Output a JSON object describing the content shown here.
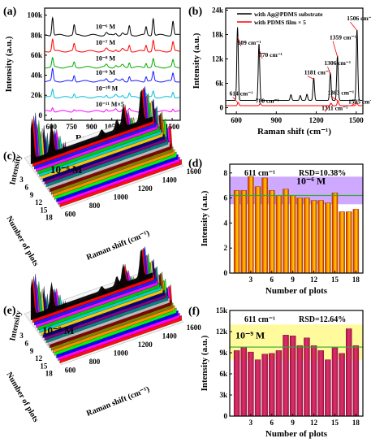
{
  "chart_data": [
    {
      "panel": "(a)",
      "type": "line",
      "xlabel": "Raman shift (cm⁻¹)",
      "ylabel": "Intensity (a.u.)",
      "xlim": [
        550,
        1560
      ],
      "ylim": [
        -5000,
        107000
      ],
      "xticks": [
        600,
        750,
        900,
        1050,
        1200,
        1350,
        1500
      ],
      "yticks": [
        0,
        20000,
        40000,
        60000,
        80000,
        100000
      ],
      "ytick_labels": [
        "0",
        "20k",
        "40k",
        "60k",
        "80k",
        "100k"
      ],
      "peaks": [
        609,
        770,
        1181,
        1306,
        1359,
        1506
      ],
      "series": [
        {
          "name": "10⁻⁶ M",
          "color": "#000000",
          "baseline": 80000,
          "peak_heights": [
            18000,
            10000,
            9000,
            8000,
            17000,
            14000
          ]
        },
        {
          "name": "10⁻⁷ M",
          "color": "#ff0000",
          "baseline": 64000,
          "peak_heights": [
            12000,
            7000,
            6000,
            6000,
            11000,
            9000
          ]
        },
        {
          "name": "10⁻⁸ M",
          "color": "#00aa00",
          "baseline": 48000,
          "peak_heights": [
            9000,
            5000,
            5000,
            4500,
            8000,
            7000
          ]
        },
        {
          "name": "10⁻⁹ M",
          "color": "#1a1aff",
          "baseline": 34000,
          "peak_heights": [
            12000,
            6000,
            5000,
            5000,
            9000,
            8000
          ]
        },
        {
          "name": "10⁻¹⁰ M",
          "color": "#00bfd8",
          "baseline": 18000,
          "peak_heights": [
            8000,
            4000,
            4000,
            3500,
            6000,
            5500
          ]
        },
        {
          "name": "10⁻¹¹ M×5",
          "color": "#ff00ff",
          "baseline": 4000,
          "peak_heights": [
            4000,
            2000,
            2000,
            2000,
            3000,
            3000
          ]
        }
      ]
    },
    {
      "panel": "(b)",
      "type": "line",
      "xlabel": "Raman shift (cm⁻¹)",
      "ylabel": "Intensity (a.u.)",
      "xlim": [
        520,
        1550
      ],
      "ylim": [
        -1500,
        24500
      ],
      "xticks": [
        600,
        900,
        1200,
        1500
      ],
      "yticks": [
        0,
        6000,
        12000,
        18000,
        24000
      ],
      "ytick_labels": [
        "0",
        "6k",
        "12k",
        "18k",
        "24k"
      ],
      "series": [
        {
          "name": "with Ag@PDMS substrate",
          "color": "#000000",
          "baseline": 1800,
          "peaks": [
            [
              609,
              18000
            ],
            [
              770,
              14000
            ],
            [
              1181,
              5500
            ],
            [
              1306,
              6800
            ],
            [
              1359,
              11000
            ],
            [
              1506,
              17500
            ],
            [
              1010,
              1400
            ],
            [
              1080,
              1200
            ],
            [
              1130,
              1500
            ]
          ]
        },
        {
          "name": "with PDMS film × 5",
          "color": "#ff0000",
          "baseline": 500,
          "peaks": [
            [
              614,
              800
            ],
            [
              780,
              500
            ],
            [
              1311,
              600
            ],
            [
              1363,
              1200
            ],
            [
              1505,
              700
            ]
          ]
        }
      ],
      "annotations": [
        {
          "text": "609 cm⁻¹"
        },
        {
          "text": "770 cm⁻¹"
        },
        {
          "text": "1181 cm⁻¹"
        },
        {
          "text": "1306 cm⁻¹"
        },
        {
          "text": "1359 cm⁻¹"
        },
        {
          "text": "1506 cm⁻¹"
        },
        {
          "text": "614 cm⁻¹"
        },
        {
          "text": "780 cm⁻¹"
        },
        {
          "text": "1311 cm⁻¹"
        },
        {
          "text": "1363 cm⁻¹"
        },
        {
          "text": "1505 cm⁻¹"
        }
      ]
    },
    {
      "panel": "(c)",
      "type": "line",
      "concentration": "10⁻⁶ M",
      "xlabel": "Raman shift (cm⁻¹)",
      "ylabel": "Intensity",
      "zlabel": "Number of plots",
      "xticks": [
        600,
        800,
        1000,
        1200,
        1400,
        1600
      ],
      "zticks": [
        3,
        6,
        9,
        12,
        15,
        18
      ],
      "n_spectra": 18,
      "peaks": [
        609,
        770,
        1181,
        1306,
        1359,
        1506
      ],
      "peak_heights": [
        1.0,
        0.78,
        0.35,
        0.45,
        0.7,
        0.9
      ],
      "colors": [
        "#000000",
        "#ff0000",
        "#1a1aff",
        "#ff00ff",
        "#00cc00",
        "#00cccc",
        "#ffcc00",
        "#000080",
        "#800080",
        "#008080",
        "#c0c0c0",
        "#800000",
        "#808000",
        "#ff8c00",
        "#00ff00",
        "#0000ff",
        "#ff00ff",
        "#ff0000"
      ]
    },
    {
      "panel": "(d)",
      "type": "bar",
      "title_peak": "611 cm⁻¹",
      "rsd": "RSD=10.38%",
      "concentration": "10⁻⁶ M",
      "xlabel": "Number of plots",
      "ylabel": "Intensity (a.u.)",
      "ylim": [
        0,
        8.7
      ],
      "yticks": [
        0,
        2,
        4,
        6,
        8
      ],
      "xticks": [
        3,
        6,
        9,
        12,
        15,
        18
      ],
      "band": [
        5.5,
        7.7
      ],
      "mean": 6.2,
      "categories": [
        1,
        2,
        3,
        4,
        5,
        6,
        7,
        8,
        9,
        10,
        11,
        12,
        13,
        14,
        15,
        16,
        17,
        18
      ],
      "values": [
        6.6,
        6.6,
        7.7,
        6.9,
        7.6,
        6.6,
        6.2,
        6.7,
        6.2,
        6.0,
        6.0,
        5.8,
        5.8,
        5.6,
        6.4,
        4.9,
        4.9,
        5.1
      ]
    },
    {
      "panel": "(e)",
      "type": "line",
      "concentration": "10⁻⁹ M",
      "xlabel": "Raman shift (cm⁻¹)",
      "ylabel": "Intensity",
      "zlabel": "Number of plots",
      "xticks": [
        600,
        800,
        1000,
        1200,
        1400,
        1600
      ],
      "zticks": [
        3,
        6,
        9,
        12,
        15,
        18
      ],
      "n_spectra": 18,
      "peaks": [
        609,
        770,
        1181,
        1306,
        1359,
        1506
      ],
      "peak_heights": [
        0.9,
        0.7,
        0.3,
        0.4,
        0.6,
        0.8
      ],
      "colors": [
        "#000000",
        "#ff0000",
        "#1a1aff",
        "#ff00ff",
        "#00cc00",
        "#00cccc",
        "#ffcc00",
        "#000080",
        "#800080",
        "#008080",
        "#c0c0c0",
        "#800000",
        "#808000",
        "#ff8c00",
        "#00ff00",
        "#0000ff",
        "#ff00ff",
        "#ff0000"
      ]
    },
    {
      "panel": "(f)",
      "type": "bar",
      "title_peak": "611 cm⁻¹",
      "rsd": "RSD=12.64%",
      "concentration": "10⁻⁹ M",
      "xlabel": "Number of plots",
      "ylabel": "Intensity (a.u.)",
      "ylim": [
        0,
        15000
      ],
      "yticks": [
        0,
        3000,
        6000,
        9000,
        12000,
        15000
      ],
      "ytick_labels": [
        "0",
        "3k",
        "6k",
        "9k",
        "12k",
        "15k"
      ],
      "xticks": [
        3,
        6,
        9,
        12,
        15,
        18
      ],
      "band": [
        8000,
        13000
      ],
      "mean": 9800,
      "categories": [
        1,
        2,
        3,
        4,
        5,
        6,
        7,
        8,
        9,
        10,
        11,
        12,
        13,
        14,
        15,
        16,
        17,
        18
      ],
      "values": [
        9300,
        9800,
        9100,
        8000,
        8800,
        8900,
        9300,
        11500,
        11400,
        10000,
        11100,
        10000,
        9300,
        8000,
        9700,
        8900,
        12400,
        10000
      ]
    }
  ]
}
